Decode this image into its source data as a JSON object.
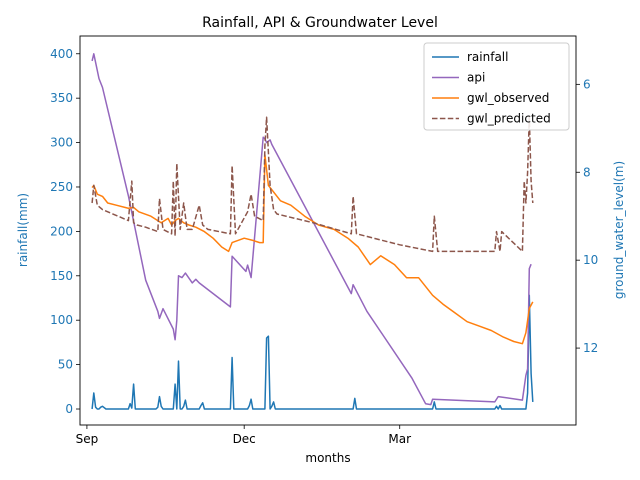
{
  "chart_data": {
    "type": "line",
    "title": "Rainfall, API & Groundwater Level",
    "xlabel": "months",
    "ylabel": "rainfall(mm)",
    "ylabel_right": "ground_water_level(m)",
    "x_ticks": [
      "Sep",
      "Dec",
      "Mar"
    ],
    "x_range": [
      "2020-08-28",
      "2021-06-11"
    ],
    "y_left_range": [
      -18,
      420
    ],
    "y_left_ticks": [
      0,
      50,
      100,
      150,
      200,
      250,
      300,
      350,
      400
    ],
    "y_right_range": [
      13.75,
      4.9
    ],
    "y_right_inverted": true,
    "y_right_ticks": [
      6,
      8,
      10,
      12
    ],
    "legend_position": "top-right",
    "grid": false,
    "colors": {
      "tick_blue": "#1f77b4"
    },
    "series": [
      {
        "name": "rainfall",
        "axis": "left",
        "color": "#1f77b4",
        "style": "solid",
        "x": [
          "2020-09-04",
          "2020-09-05",
          "2020-09-06",
          "2020-09-07",
          "2020-09-08",
          "2020-09-09",
          "2020-09-10",
          "2020-09-12",
          "2020-09-25",
          "2020-09-26",
          "2020-09-27",
          "2020-09-28",
          "2020-09-29",
          "2020-10-11",
          "2020-10-12",
          "2020-10-13",
          "2020-10-14",
          "2020-10-15",
          "2020-10-21",
          "2020-10-22",
          "2020-10-23",
          "2020-10-24",
          "2020-10-25",
          "2020-10-26",
          "2020-10-27",
          "2020-10-28",
          "2020-10-29",
          "2020-10-30",
          "2020-10-31",
          "2020-11-05",
          "2020-11-06",
          "2020-11-07",
          "2020-11-08",
          "2020-11-23",
          "2020-11-24",
          "2020-11-25",
          "2020-11-26",
          "2020-12-03",
          "2020-12-04",
          "2020-12-05",
          "2020-12-06",
          "2020-12-13",
          "2020-12-14",
          "2020-12-15",
          "2020-12-16",
          "2020-12-17",
          "2020-12-18",
          "2020-12-19",
          "2020-12-20",
          "2021-02-02",
          "2021-02-03",
          "2021-02-04",
          "2021-03-20",
          "2021-03-21",
          "2021-03-22",
          "2021-04-25",
          "2021-04-26",
          "2021-04-27",
          "2021-04-28",
          "2021-04-29",
          "2021-05-13",
          "2021-05-14",
          "2021-05-15",
          "2021-05-16",
          "2021-05-17"
        ],
        "values": [
          0,
          18,
          2,
          0,
          0,
          2,
          3,
          0,
          0,
          6,
          1,
          28,
          0,
          0,
          2,
          14,
          3,
          0,
          0,
          28,
          0,
          54,
          0,
          0,
          3,
          10,
          0,
          0,
          0,
          0,
          4,
          7,
          0,
          0,
          58,
          0,
          0,
          0,
          4,
          11,
          0,
          0,
          80,
          82,
          0,
          3,
          8,
          0,
          0,
          0,
          12,
          0,
          0,
          8,
          0,
          0,
          3,
          0,
          4,
          0,
          0,
          18,
          128,
          40,
          8
        ]
      },
      {
        "name": "api",
        "axis": "left",
        "color": "#9467bd",
        "style": "solid",
        "x": [
          "2020-09-04",
          "2020-09-05",
          "2020-09-08",
          "2020-09-10",
          "2020-09-25",
          "2020-10-05",
          "2020-10-12",
          "2020-10-13",
          "2020-10-15",
          "2020-10-21",
          "2020-10-22",
          "2020-10-23",
          "2020-10-24",
          "2020-10-26",
          "2020-10-28",
          "2020-11-01",
          "2020-11-03",
          "2020-11-05",
          "2020-11-23",
          "2020-11-24",
          "2020-12-02",
          "2020-12-03",
          "2020-12-05",
          "2020-12-12",
          "2020-12-13",
          "2020-12-14",
          "2020-12-16",
          "2020-12-17",
          "2021-02-01",
          "2021-02-02",
          "2021-02-10",
          "2021-03-08",
          "2021-03-16",
          "2021-03-19",
          "2021-03-20",
          "2021-04-25",
          "2021-04-27",
          "2021-05-11",
          "2021-05-13",
          "2021-05-14",
          "2021-05-15",
          "2021-05-16"
        ],
        "values": [
          392,
          400,
          372,
          362,
          240,
          145,
          110,
          102,
          113,
          90,
          78,
          100,
          150,
          148,
          153,
          142,
          146,
          142,
          115,
          172,
          155,
          162,
          148,
          306,
          304,
          300,
          303,
          298,
          130,
          140,
          110,
          35,
          6,
          5,
          11,
          8,
          14,
          10,
          38,
          45,
          158,
          163
        ]
      },
      {
        "name": "gwl_observed",
        "axis": "right",
        "color": "#ff7f0e",
        "style": "solid",
        "x": [
          "2020-09-04",
          "2020-09-05",
          "2020-09-07",
          "2020-09-10",
          "2020-09-13",
          "2020-09-18",
          "2020-09-25",
          "2020-09-28",
          "2020-10-01",
          "2020-10-08",
          "2020-10-12",
          "2020-10-14",
          "2020-10-18",
          "2020-10-20",
          "2020-10-22",
          "2020-10-24",
          "2020-10-27",
          "2020-10-30",
          "2020-11-03",
          "2020-11-08",
          "2020-11-13",
          "2020-11-18",
          "2020-11-22",
          "2020-11-24",
          "2020-12-01",
          "2020-12-06",
          "2020-12-10",
          "2020-12-12",
          "2020-12-13",
          "2020-12-15",
          "2020-12-22",
          "2020-12-28",
          "2021-01-05",
          "2021-01-13",
          "2021-01-22",
          "2021-01-30",
          "2021-02-05",
          "2021-02-12",
          "2021-02-18",
          "2021-02-26",
          "2021-03-05",
          "2021-03-12",
          "2021-03-20",
          "2021-03-26",
          "2021-04-02",
          "2021-04-09",
          "2021-04-16",
          "2021-04-23",
          "2021-04-30",
          "2021-05-06",
          "2021-05-11",
          "2021-05-13",
          "2021-05-15",
          "2021-05-17"
        ],
        "values": [
          8.35,
          8.3,
          8.5,
          8.55,
          8.7,
          8.75,
          8.82,
          8.8,
          8.9,
          9.0,
          9.1,
          9.15,
          9.05,
          9.2,
          9.1,
          9.05,
          9.15,
          9.2,
          9.25,
          9.35,
          9.5,
          9.7,
          9.8,
          9.6,
          9.5,
          9.55,
          9.6,
          9.6,
          7.6,
          8.3,
          8.65,
          8.75,
          9.0,
          9.2,
          9.3,
          9.5,
          9.7,
          10.1,
          9.9,
          10.1,
          10.4,
          10.4,
          10.8,
          11.0,
          11.2,
          11.4,
          11.5,
          11.6,
          11.75,
          11.85,
          11.9,
          11.65,
          11.1,
          10.95
        ]
      },
      {
        "name": "gwl_predicted",
        "axis": "right",
        "color": "#8c564b",
        "style": "dashed",
        "x": [
          "2020-09-04",
          "2020-09-05",
          "2020-09-07",
          "2020-09-10",
          "2020-09-25",
          "2020-09-27",
          "2020-09-28",
          "2020-09-30",
          "2020-10-05",
          "2020-10-12",
          "2020-10-13",
          "2020-10-15",
          "2020-10-20",
          "2020-10-21",
          "2020-10-22",
          "2020-10-23",
          "2020-10-25",
          "2020-10-27",
          "2020-10-29",
          "2020-11-01",
          "2020-11-05",
          "2020-11-07",
          "2020-11-10",
          "2020-11-23",
          "2020-11-24",
          "2020-11-26",
          "2020-12-03",
          "2020-12-05",
          "2020-12-07",
          "2020-12-12",
          "2020-12-13",
          "2020-12-14",
          "2020-12-16",
          "2020-12-18",
          "2020-12-20",
          "2021-01-10",
          "2021-02-01",
          "2021-02-02",
          "2021-02-04",
          "2021-03-01",
          "2021-03-20",
          "2021-03-21",
          "2021-03-23",
          "2021-04-25",
          "2021-04-26",
          "2021-04-28",
          "2021-04-29",
          "2021-05-11",
          "2021-05-12",
          "2021-05-13",
          "2021-05-14",
          "2021-05-15",
          "2021-05-16",
          "2021-05-17"
        ],
        "values": [
          8.7,
          8.3,
          8.75,
          8.85,
          9.1,
          8.2,
          9.15,
          9.2,
          9.25,
          9.35,
          8.6,
          9.3,
          9.4,
          8.2,
          9.45,
          7.8,
          9.3,
          8.7,
          9.3,
          9.3,
          8.75,
          9.2,
          9.3,
          9.4,
          7.85,
          9.4,
          8.9,
          8.5,
          9.0,
          9.1,
          7.4,
          6.75,
          8.3,
          8.85,
          8.95,
          9.15,
          9.4,
          8.55,
          9.4,
          9.65,
          9.8,
          9.0,
          9.8,
          9.8,
          9.35,
          9.8,
          9.35,
          9.8,
          8.2,
          8.7,
          8.0,
          6.75,
          8.2,
          8.7
        ]
      }
    ]
  }
}
